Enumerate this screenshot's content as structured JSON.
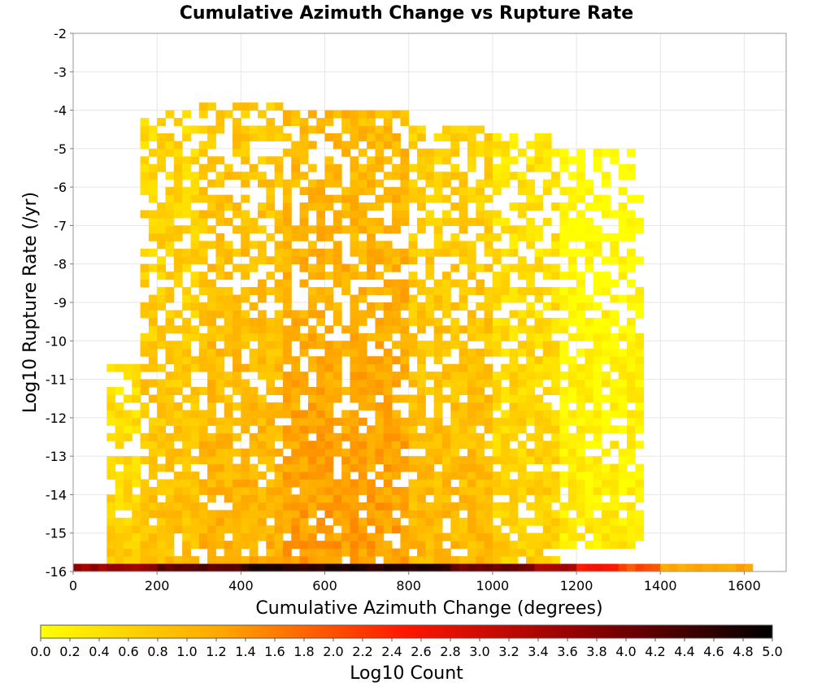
{
  "chart_data": {
    "type": "heatmap",
    "title": "Cumulative Azimuth Change vs Rupture Rate",
    "xlabel": "Cumulative Azimuth Change (degrees)",
    "ylabel": "Log10 Rupture Rate (/yr)",
    "xlim": [
      0,
      1700
    ],
    "ylim": [
      -16,
      -2
    ],
    "x_ticks": [
      "0",
      "200",
      "400",
      "600",
      "800",
      "1000",
      "1200",
      "1400",
      "1600"
    ],
    "y_ticks": [
      "-2",
      "-3",
      "-4",
      "-5",
      "-6",
      "-7",
      "-8",
      "-9",
      "-10",
      "-11",
      "-12",
      "-13",
      "-14",
      "-15",
      "-16"
    ],
    "grid": true,
    "bin_width_x": 20,
    "bin_height_y": 0.2,
    "colorbar": {
      "label": "Log10 Count",
      "range": [
        0.0,
        5.0
      ],
      "ticks": [
        "0.0",
        "0.2",
        "0.4",
        "0.6",
        "0.8",
        "1.0",
        "1.2",
        "1.4",
        "1.6",
        "1.8",
        "2.0",
        "2.2",
        "2.4",
        "2.6",
        "2.8",
        "3.0",
        "3.2",
        "3.4",
        "3.6",
        "3.8",
        "4.0",
        "4.2",
        "4.4",
        "4.6",
        "4.8",
        "5.0"
      ],
      "colors": [
        "#ffff00",
        "#ffa500",
        "#ff1500",
        "#8b0000",
        "#000000"
      ],
      "placement": "bottom"
    },
    "bottom_row": {
      "y": -15.9,
      "x_start": 0,
      "x_end": 1620,
      "segments": [
        {
          "from": 0,
          "to": 200,
          "value": 3.6
        },
        {
          "from": 200,
          "to": 400,
          "value": 4.2
        },
        {
          "from": 400,
          "to": 900,
          "value": 4.7
        },
        {
          "from": 900,
          "to": 1100,
          "value": 4.0
        },
        {
          "from": 1100,
          "to": 1200,
          "value": 3.4
        },
        {
          "from": 1200,
          "to": 1300,
          "value": 2.6
        },
        {
          "from": 1300,
          "to": 1400,
          "value": 2.0
        },
        {
          "from": 1400,
          "to": 1620,
          "value": 1.2
        }
      ]
    },
    "density_envelope": [
      {
        "x_from": 80,
        "x_to": 160,
        "y_min": -15.8,
        "y_max": -10.8,
        "value": 0.7
      },
      {
        "x_from": 160,
        "x_to": 300,
        "y_min": -15.8,
        "y_max": -4.2,
        "value": 0.9
      },
      {
        "x_from": 300,
        "x_to": 500,
        "y_min": -15.8,
        "y_max": -4.0,
        "value": 1.1
      },
      {
        "x_from": 500,
        "x_to": 800,
        "y_min": -15.8,
        "y_max": -4.2,
        "value": 1.3
      },
      {
        "x_from": 800,
        "x_to": 1000,
        "y_min": -15.8,
        "y_max": -4.6,
        "value": 1.0
      },
      {
        "x_from": 1000,
        "x_to": 1160,
        "y_min": -15.8,
        "y_max": -4.8,
        "value": 0.7
      },
      {
        "x_from": 1160,
        "x_to": 1360,
        "y_min": -15.4,
        "y_max": -5.2,
        "value": 0.3
      }
    ]
  }
}
